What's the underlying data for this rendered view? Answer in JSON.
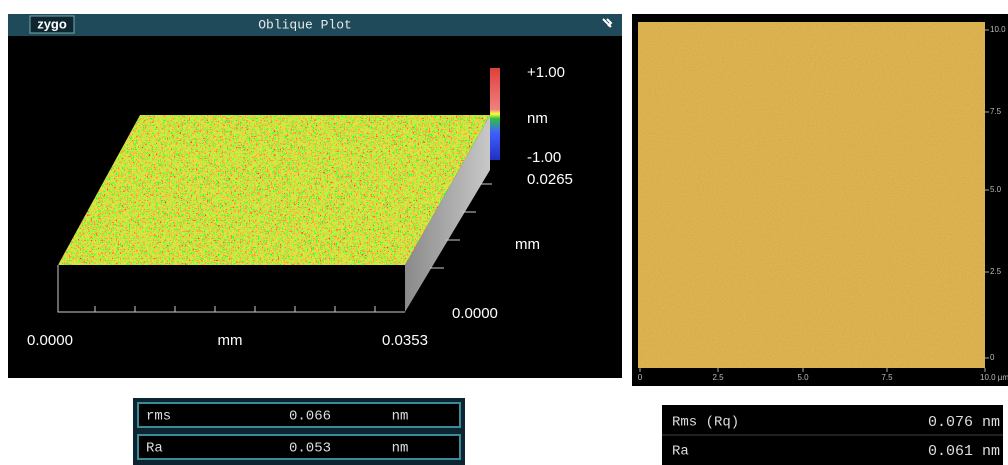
{
  "left_panel": {
    "brand": "zygo",
    "title": "Oblique Plot",
    "color_scale": {
      "max": "+1.00",
      "unit": "nm",
      "min": "-1.00"
    },
    "y_axis": {
      "max": "0.0265",
      "unit": "mm",
      "min": "0.0000"
    },
    "x_axis": {
      "min": "0.0000",
      "unit": "mm",
      "max": "0.0353"
    },
    "table": {
      "rows": [
        [
          "rms",
          "0.066",
          "nm"
        ],
        [
          "Ra",
          "0.053",
          "nm"
        ]
      ]
    }
  },
  "right_panel": {
    "y_ticks": [
      "10.0",
      "7.5",
      "5.0",
      "2.5",
      "0"
    ],
    "x_ticks": [
      "0",
      "2.5",
      "5.0",
      "7.5",
      "10.0 µm"
    ],
    "table": {
      "rows": [
        [
          "Rms (Rq)",
          "0.076 nm"
        ],
        [
          "Ra",
          "0.061 nm"
        ]
      ]
    }
  }
}
